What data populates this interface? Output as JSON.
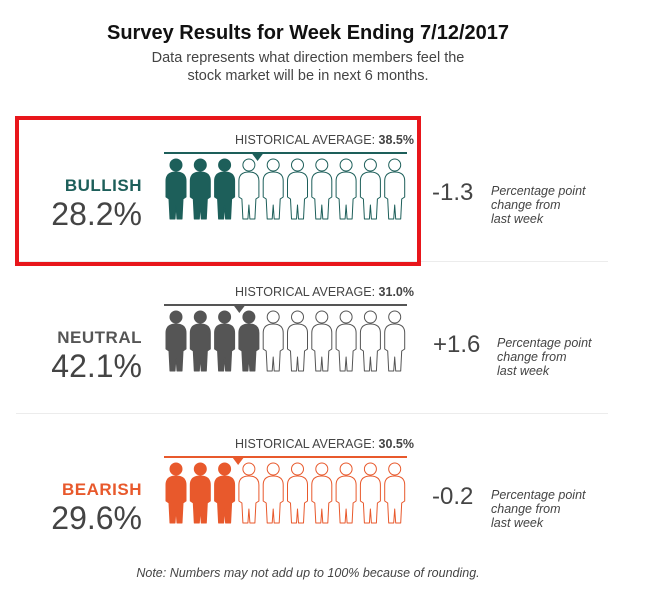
{
  "title": "Survey Results for Week Ending 7/12/2017",
  "subtitle_line1": "Data represents what direction members feel the",
  "subtitle_line2": "stock market will be in next 6 months.",
  "footnote": "Note: Numbers may not add up to 100% because of rounding.",
  "historical_label": "HISTORICAL AVERAGE:",
  "change_caption_line1": "Percentage point",
  "change_caption_line2": "change from",
  "change_caption_line3": "last week",
  "chart_data": {
    "type": "pictogram",
    "title": "Survey Results for Week Ending 7/12/2017",
    "subtitle": "Data represents what direction members feel the stock market will be in next 6 months.",
    "icons_per_row": 10,
    "scale_max_percent": 100,
    "series": [
      {
        "key": "bullish",
        "name": "BULLISH",
        "value": 28.2,
        "value_label": "28.2%",
        "historical_average": 38.5,
        "historical_label": "38.5%",
        "change": -1.3,
        "change_label": "-1.3",
        "color": "#1d5f5a"
      },
      {
        "key": "neutral",
        "name": "NEUTRAL",
        "value": 42.1,
        "value_label": "42.1%",
        "historical_average": 31.0,
        "historical_label": "31.0%",
        "change": 1.6,
        "change_label": "+1.6",
        "color": "#555555"
      },
      {
        "key": "bearish",
        "name": "BEARISH",
        "value": 29.6,
        "value_label": "29.6%",
        "historical_average": 30.5,
        "historical_label": "30.5%",
        "change": -0.2,
        "change_label": "-0.2",
        "color": "#e8592c"
      }
    ]
  }
}
